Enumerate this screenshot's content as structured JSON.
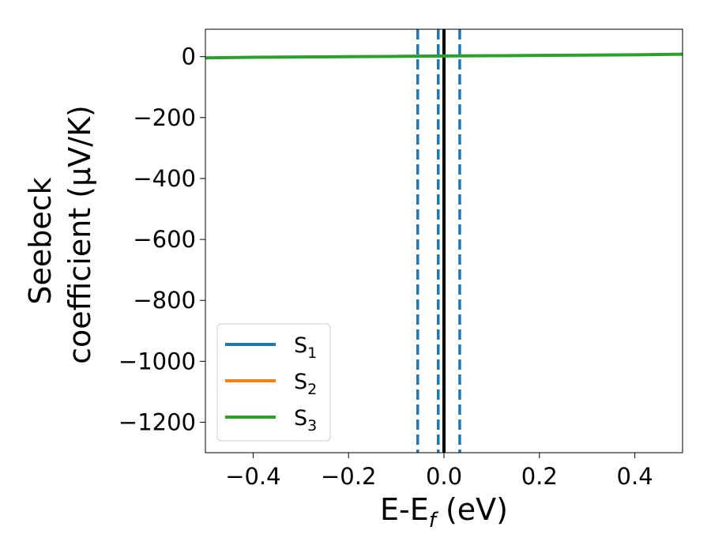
{
  "chart_data": {
    "type": "line",
    "xlabel": "E-E",
    "xlabel_sub": "f",
    "xlabel_suffix": " (eV)",
    "ylabel_line1": "Seebeck",
    "ylabel_line2": "coefficient  (μV/K)",
    "xlim": [
      -0.5,
      0.5
    ],
    "ylim": [
      -1300,
      90
    ],
    "xticks": [
      -0.4,
      -0.2,
      0.0,
      0.2,
      0.4
    ],
    "xtick_labels": [
      "−0.4",
      "−0.2",
      "0.0",
      "0.2",
      "0.4"
    ],
    "yticks": [
      0,
      -200,
      -400,
      -600,
      -800,
      -1000,
      -1200
    ],
    "ytick_labels": [
      "0",
      "−200",
      "−400",
      "−600",
      "−800",
      "−1000",
      "−1200"
    ],
    "grid": false,
    "legend_position": "lower-left",
    "series": [
      {
        "name": "S",
        "sub": "1",
        "color": "#1f77b4",
        "x": [],
        "y": []
      },
      {
        "name": "S",
        "sub": "2",
        "color": "#ff7f0e",
        "x": [],
        "y": []
      },
      {
        "name": "S",
        "sub": "3",
        "color": "#2ca02c",
        "x": [
          -0.5,
          -0.4,
          -0.3,
          -0.2,
          -0.1,
          0.0,
          0.1,
          0.2,
          0.3,
          0.4,
          0.5
        ],
        "y": [
          -4,
          -2,
          -1,
          0,
          1,
          2,
          3,
          4,
          5,
          6,
          8
        ]
      }
    ],
    "vlines": [
      {
        "x": -0.055,
        "style": "dashed",
        "color": "#1f77b4"
      },
      {
        "x": -0.012,
        "style": "dashed",
        "color": "#1f77b4"
      },
      {
        "x": 0.0,
        "style": "solid",
        "color": "#000000"
      },
      {
        "x": 0.033,
        "style": "dashed",
        "color": "#1f77b4"
      }
    ]
  }
}
